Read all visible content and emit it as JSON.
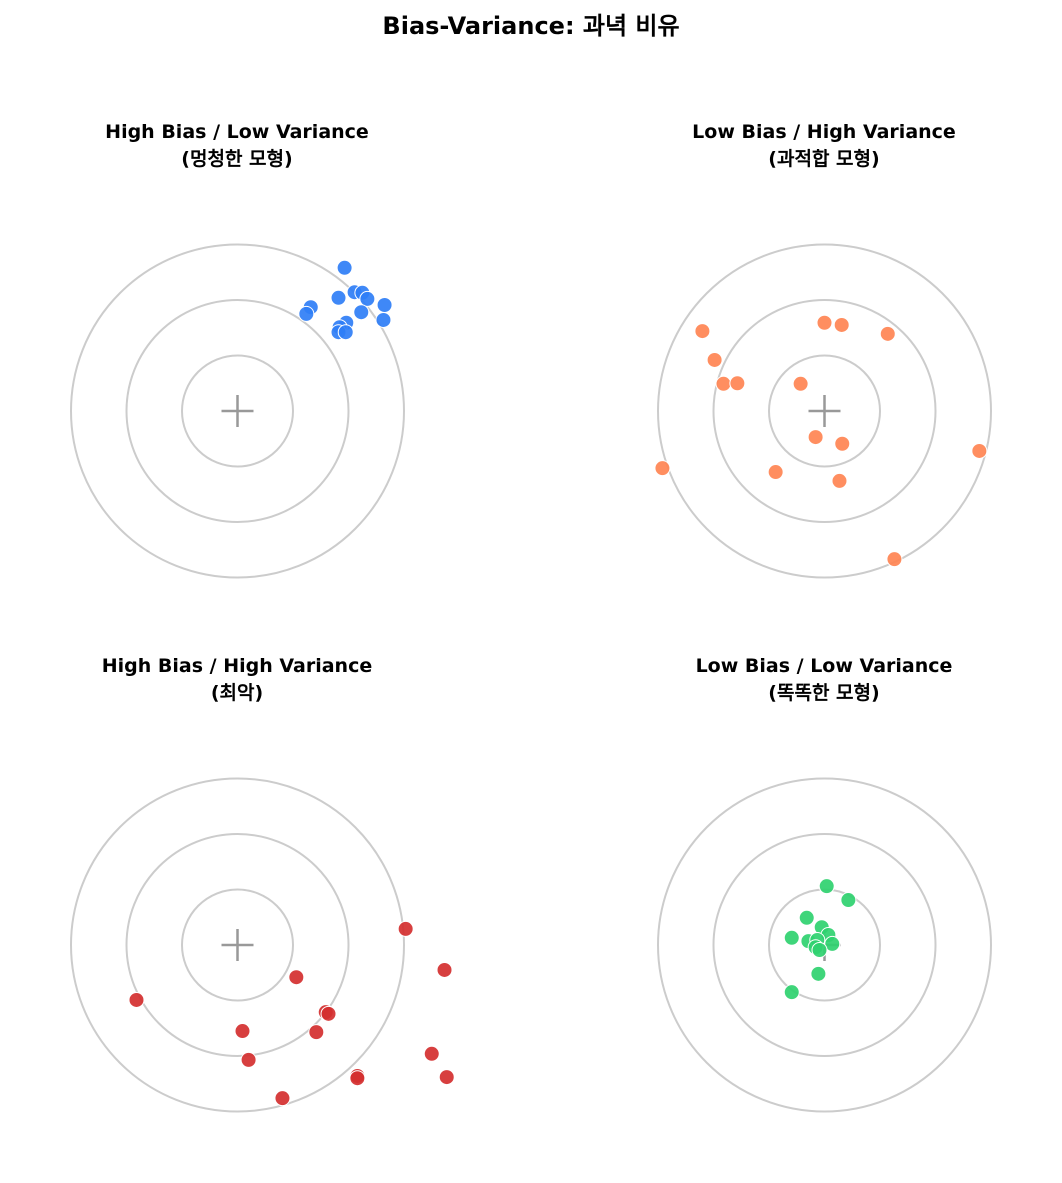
{
  "figure": {
    "title": "Bias-Variance: 과녁 비유"
  },
  "panels": [
    {
      "title_line1": "High Bias / Low Variance",
      "title_line2": "(멍청한 모형)"
    },
    {
      "title_line1": "Low Bias / High Variance",
      "title_line2": "(과적합 모형)"
    },
    {
      "title_line1": "High Bias / High Variance",
      "title_line2": "(최악)"
    },
    {
      "title_line1": "Low Bias / Low Variance",
      "title_line2": "(똑똑한 모형)"
    }
  ],
  "chart_data": [
    {
      "type": "scatter",
      "title": "High Bias / Low Variance (멍청한 모형)",
      "target": {
        "center": [
          0,
          0
        ],
        "ring_radii": [
          1,
          2,
          3
        ],
        "center_marker": "+"
      },
      "axis": "off",
      "color": "#2f7ef6",
      "points": [
        [
          1.93,
          2.58
        ],
        [
          1.82,
          2.04
        ],
        [
          2.11,
          2.14
        ],
        [
          2.25,
          2.13
        ],
        [
          2.34,
          2.02
        ],
        [
          2.65,
          1.91
        ],
        [
          1.32,
          1.87
        ],
        [
          1.24,
          1.75
        ],
        [
          2.23,
          1.78
        ],
        [
          2.63,
          1.64
        ],
        [
          1.96,
          1.59
        ],
        [
          1.84,
          1.51
        ],
        [
          1.82,
          1.42
        ],
        [
          1.95,
          1.42
        ]
      ]
    },
    {
      "type": "scatter",
      "title": "Low Bias / High Variance (과적합 모형)",
      "target": {
        "center": [
          0,
          0
        ],
        "ring_radii": [
          1,
          2,
          3
        ],
        "center_marker": "+"
      },
      "axis": "off",
      "color": "#ff8452",
      "points": [
        [
          -2.2,
          1.44
        ],
        [
          -1.98,
          0.92
        ],
        [
          -1.82,
          0.49
        ],
        [
          -1.57,
          0.5
        ],
        [
          -0.43,
          0.49
        ],
        [
          0.0,
          1.59
        ],
        [
          0.31,
          1.55
        ],
        [
          1.14,
          1.39
        ],
        [
          -0.16,
          -0.47
        ],
        [
          0.32,
          -0.59
        ],
        [
          -2.92,
          -1.03
        ],
        [
          -0.88,
          -1.1
        ],
        [
          0.27,
          -1.26
        ],
        [
          2.79,
          -0.72
        ],
        [
          1.26,
          -2.67
        ]
      ]
    },
    {
      "type": "scatter",
      "title": "High Bias / High Variance (최악)",
      "target": {
        "center": [
          0,
          0
        ],
        "ring_radii": [
          1,
          2,
          3
        ],
        "center_marker": "+"
      },
      "axis": "off",
      "color": "#d42f2f",
      "points": [
        [
          3.03,
          0.29
        ],
        [
          3.73,
          -0.45
        ],
        [
          1.06,
          -0.58
        ],
        [
          -1.82,
          -0.99
        ],
        [
          1.59,
          -1.21
        ],
        [
          1.64,
          -1.24
        ],
        [
          0.09,
          -1.55
        ],
        [
          1.42,
          -1.57
        ],
        [
          0.2,
          -2.07
        ],
        [
          3.5,
          -1.96
        ],
        [
          2.16,
          -2.36
        ],
        [
          2.16,
          -2.4
        ],
        [
          3.77,
          -2.38
        ],
        [
          0.81,
          -2.76
        ]
      ]
    },
    {
      "type": "scatter",
      "title": "Low Bias / Low Variance (똑똑한 모형)",
      "target": {
        "center": [
          0,
          0
        ],
        "ring_radii": [
          1,
          2,
          3
        ],
        "center_marker": "+"
      },
      "axis": "off",
      "color": "#2fd16f",
      "points": [
        [
          0.04,
          1.06
        ],
        [
          0.43,
          0.81
        ],
        [
          -0.32,
          0.49
        ],
        [
          -0.05,
          0.32
        ],
        [
          -0.59,
          0.13
        ],
        [
          -0.29,
          0.07
        ],
        [
          0.07,
          0.18
        ],
        [
          -0.13,
          0.09
        ],
        [
          -0.16,
          -0.04
        ],
        [
          0.14,
          0.02
        ],
        [
          -0.09,
          -0.09
        ],
        [
          -0.11,
          -0.52
        ],
        [
          -0.59,
          -0.85
        ]
      ]
    }
  ],
  "style": {
    "ring_color": "#cccccc",
    "cross_color": "#999999",
    "marker_edge": "#ffffff"
  }
}
